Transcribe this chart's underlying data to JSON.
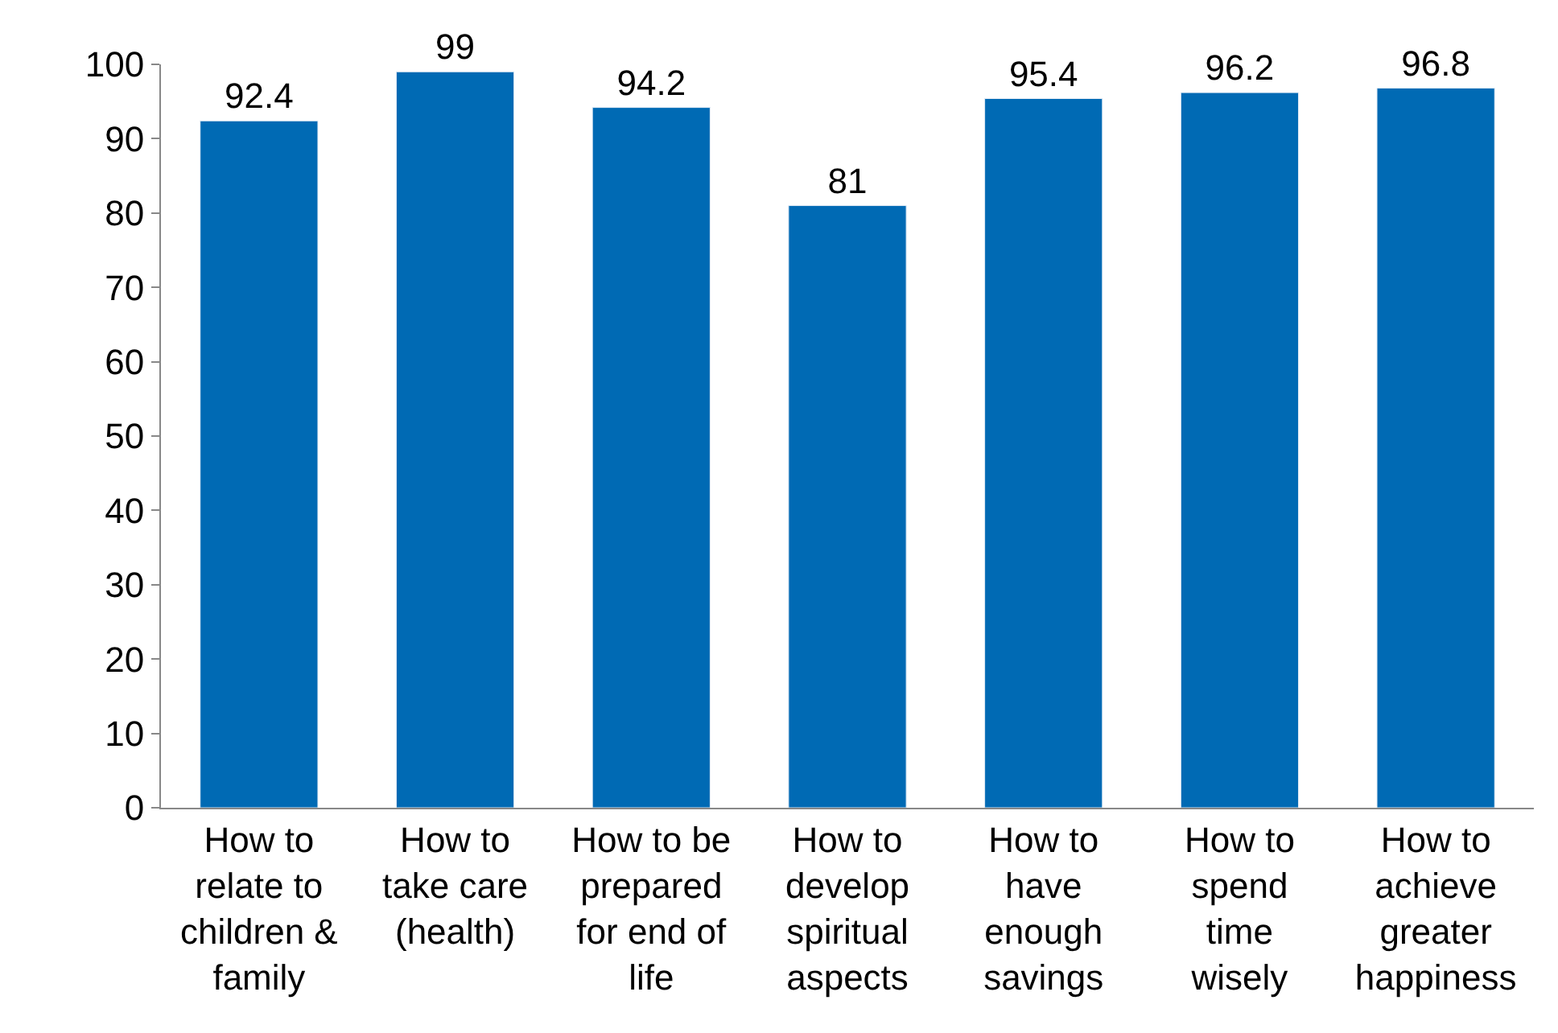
{
  "chart_data": {
    "type": "bar",
    "categories": [
      "How to\nrelate to\nchildren &\nfamily",
      "How to\ntake care\n(health)",
      "How to be\nprepared\nfor end of\nlife",
      "How to\ndevelop\nspiritual\naspects",
      "How to\nhave\nenough\nsavings",
      "How to\nspend\ntime\nwisely",
      "How to\nachieve\ngreater\nhappiness"
    ],
    "values": [
      92.4,
      99,
      94.2,
      81,
      95.4,
      96.2,
      96.8
    ],
    "color": "#006ab4",
    "ylim": [
      0,
      100
    ],
    "yticks": [
      0,
      10,
      20,
      30,
      40,
      50,
      60,
      70,
      80,
      90,
      100
    ],
    "data_labels": true
  }
}
